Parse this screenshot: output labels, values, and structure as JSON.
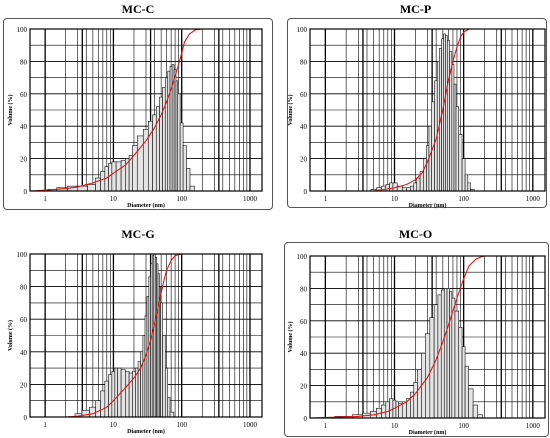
{
  "chart_data": [
    {
      "type": "bar",
      "title": "MC-C",
      "xlabel": "Diameter (nm)",
      "ylabel": "Volume (%)",
      "x_scale": "log",
      "xlim": [
        0.6,
        1500
      ],
      "ylim": [
        0,
        100
      ],
      "xticks": [
        1,
        10,
        100,
        1000
      ],
      "yticks": [
        0,
        20,
        40,
        60,
        80,
        100
      ],
      "grid": true,
      "colors": {
        "bars": "#e4e4e4",
        "bar_edge": "#111111",
        "cumulative": "#e01818"
      },
      "histogram": {
        "x": [
          1.2,
          1.8,
          2.5,
          3.5,
          5,
          6,
          7,
          8,
          9,
          10,
          12,
          14,
          16,
          18,
          20,
          25,
          30,
          35,
          40,
          45,
          50,
          55,
          60,
          65,
          70,
          75,
          80,
          85,
          90,
          100,
          110,
          125,
          140
        ],
        "values": [
          1,
          2,
          3,
          3,
          4,
          8,
          12,
          15,
          17,
          18,
          18,
          19,
          20,
          22,
          28,
          34,
          38,
          43,
          47,
          52,
          58,
          64,
          70,
          74,
          77,
          78,
          75,
          68,
          60,
          42,
          28,
          14,
          3
        ]
      },
      "cumulative": {
        "x": [
          0.6,
          1,
          2,
          3,
          5,
          8,
          10,
          15,
          20,
          30,
          40,
          50,
          60,
          70,
          80,
          90,
          100,
          110,
          130,
          160,
          200,
          500,
          1000,
          1500
        ],
        "values": [
          0,
          0.5,
          1.5,
          2.5,
          5,
          8,
          11,
          16,
          22,
          31,
          39,
          47,
          55,
          63,
          71,
          78,
          85,
          92,
          97,
          99.5,
          100,
          100,
          100,
          100
        ]
      }
    },
    {
      "type": "bar",
      "title": "MC-P",
      "xlabel": "Diameter (nm)",
      "ylabel": "Volume (%)",
      "x_scale": "log",
      "xlim": [
        0.6,
        1500
      ],
      "ylim": [
        0,
        100
      ],
      "xticks": [
        1,
        10,
        100,
        1000
      ],
      "yticks": [
        0,
        20,
        40,
        60,
        80,
        100
      ],
      "grid": true,
      "colors": {
        "bars": "#e4e4e4",
        "bar_edge": "#111111",
        "cumulative": "#e01818"
      },
      "histogram": {
        "x": [
          5,
          6,
          7,
          8,
          9,
          10,
          12,
          14,
          16,
          18,
          20,
          22,
          25,
          28,
          30,
          33,
          36,
          40,
          43,
          46,
          50,
          53,
          56,
          60,
          65,
          70,
          75,
          80,
          90,
          100,
          110,
          120,
          130
        ],
        "values": [
          1,
          2,
          3,
          4,
          5,
          5,
          3,
          2,
          2,
          3,
          5,
          8,
          12,
          20,
          28,
          40,
          55,
          68,
          80,
          88,
          94,
          97,
          96,
          93,
          86,
          78,
          66,
          52,
          35,
          20,
          10,
          5,
          1
        ]
      },
      "cumulative": {
        "x": [
          0.6,
          5,
          10,
          15,
          20,
          25,
          30,
          40,
          50,
          60,
          70,
          80,
          90,
          100,
          120,
          150,
          200,
          1000,
          1500
        ],
        "values": [
          0,
          0,
          2,
          4,
          7,
          11,
          18,
          32,
          50,
          68,
          80,
          89,
          95,
          98,
          100,
          100,
          100,
          100,
          100
        ]
      }
    },
    {
      "type": "bar",
      "title": "MC-G",
      "xlabel": "Diameter (nm)",
      "ylabel": "Volume (%)",
      "x_scale": "log",
      "xlim": [
        0.6,
        1500
      ],
      "ylim": [
        0,
        100
      ],
      "xticks": [
        1,
        10,
        100,
        1000
      ],
      "yticks": [
        0,
        20,
        40,
        60,
        80,
        100
      ],
      "grid": true,
      "colors": {
        "bars": "#e4e4e4",
        "bar_edge": "#111111",
        "cumulative": "#e01818"
      },
      "histogram": {
        "x": [
          3,
          4,
          5,
          6,
          7,
          8,
          9,
          10,
          11,
          12,
          14,
          16,
          18,
          20,
          22,
          24,
          26,
          28,
          30,
          32,
          34,
          36,
          38,
          40,
          42,
          44,
          46,
          48,
          50,
          55,
          60,
          65,
          70
        ],
        "values": [
          2,
          4,
          6,
          10,
          16,
          22,
          26,
          28,
          30,
          30,
          29,
          28,
          27,
          28,
          30,
          34,
          40,
          50,
          62,
          74,
          86,
          94,
          99,
          100,
          98,
          94,
          88,
          80,
          70,
          50,
          30,
          12,
          3
        ]
      },
      "cumulative": {
        "x": [
          0.6,
          2,
          3,
          5,
          8,
          10,
          15,
          20,
          25,
          30,
          35,
          40,
          45,
          50,
          55,
          60,
          70,
          80,
          100,
          1000,
          1500
        ],
        "values": [
          0,
          0,
          0.5,
          2,
          6,
          10,
          18,
          24,
          30,
          38,
          47,
          57,
          67,
          76,
          84,
          90,
          96,
          99,
          100,
          100,
          100
        ]
      }
    },
    {
      "type": "bar",
      "title": "MC-O",
      "xlabel": "Diameter (nm)",
      "ylabel": "Volume (%)",
      "x_scale": "log",
      "xlim": [
        0.6,
        1500
      ],
      "ylim": [
        0,
        100
      ],
      "xticks": [
        1,
        10,
        100,
        1000
      ],
      "yticks": [
        0,
        20,
        40,
        60,
        80,
        100
      ],
      "grid": true,
      "colors": {
        "bars": "#e4e4e4",
        "bar_edge": "#111111",
        "cumulative": "#e01818"
      },
      "histogram": {
        "x": [
          1.5,
          2,
          3,
          4,
          5,
          6,
          7,
          8,
          9,
          10,
          11,
          12,
          14,
          16,
          18,
          20,
          23,
          26,
          30,
          35,
          40,
          45,
          50,
          55,
          60,
          65,
          70,
          80,
          90,
          100,
          110,
          125,
          150,
          170
        ],
        "values": [
          1,
          1,
          2,
          3,
          4,
          6,
          8,
          10,
          12,
          11,
          10,
          9,
          10,
          12,
          16,
          22,
          30,
          40,
          52,
          62,
          70,
          76,
          79,
          80,
          80,
          78,
          74,
          66,
          56,
          44,
          32,
          18,
          8,
          2
        ]
      },
      "cumulative": {
        "x": [
          0.6,
          3,
          5,
          8,
          10,
          15,
          20,
          30,
          40,
          50,
          60,
          70,
          80,
          100,
          120,
          150,
          180,
          200,
          1000,
          1500
        ],
        "values": [
          0,
          1,
          2,
          4,
          6,
          10,
          15,
          25,
          36,
          47,
          57,
          66,
          74,
          86,
          94,
          98,
          99.5,
          100,
          100,
          100
        ]
      }
    }
  ]
}
